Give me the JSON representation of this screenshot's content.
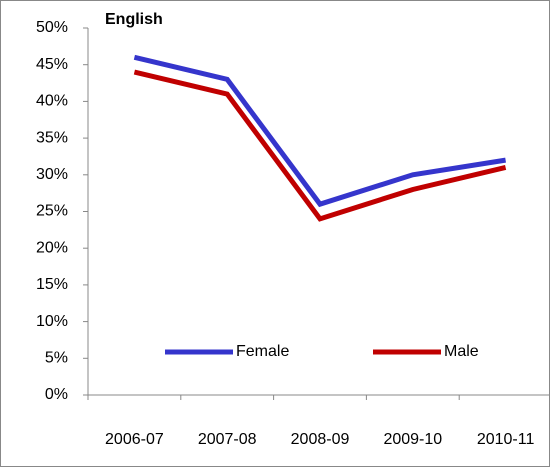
{
  "chart_data": {
    "type": "line",
    "title": "English",
    "categories": [
      "2006-07",
      "2007-08",
      "2008-09",
      "2009-10",
      "2010-11"
    ],
    "series": [
      {
        "name": "Female",
        "color": "#3535cc",
        "values": [
          46,
          43,
          26,
          30,
          32
        ]
      },
      {
        "name": "Male",
        "color": "#c00000",
        "values": [
          44,
          41,
          24,
          28,
          31
        ]
      }
    ],
    "ylim": [
      0,
      50
    ],
    "yticks": [
      {
        "value": 0,
        "label": "0%"
      },
      {
        "value": 5,
        "label": "5%"
      },
      {
        "value": 10,
        "label": "10%"
      },
      {
        "value": 15,
        "label": "15%"
      },
      {
        "value": 20,
        "label": "20%"
      },
      {
        "value": 25,
        "label": "25%"
      },
      {
        "value": 30,
        "label": "30%"
      },
      {
        "value": 35,
        "label": "35%"
      },
      {
        "value": 40,
        "label": "40%"
      },
      {
        "value": 45,
        "label": "45%"
      },
      {
        "value": 50,
        "label": "50%"
      }
    ],
    "grid": false
  }
}
